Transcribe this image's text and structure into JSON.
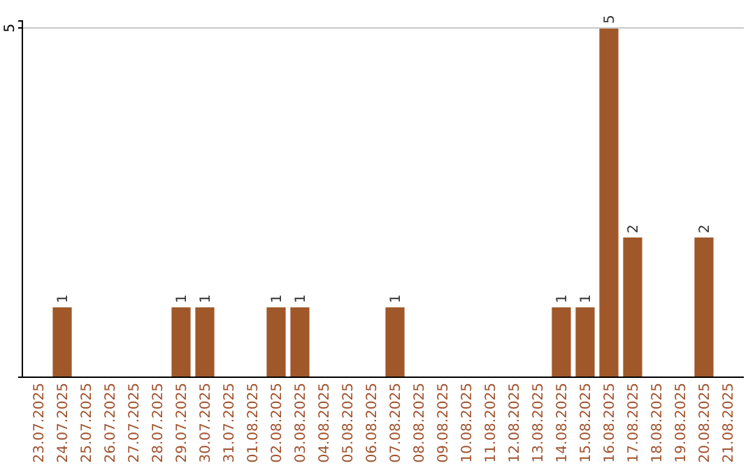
{
  "chart_data": {
    "type": "bar",
    "categories": [
      "23.07.2025",
      "24.07.2025",
      "25.07.2025",
      "26.07.2025",
      "27.07.2025",
      "28.07.2025",
      "29.07.2025",
      "30.07.2025",
      "31.07.2025",
      "01.08.2025",
      "02.08.2025",
      "03.08.2025",
      "04.08.2025",
      "05.08.2025",
      "06.08.2025",
      "07.08.2025",
      "08.08.2025",
      "09.08.2025",
      "10.08.2025",
      "11.08.2025",
      "12.08.2025",
      "13.08.2025",
      "14.08.2025",
      "15.08.2025",
      "16.08.2025",
      "17.08.2025",
      "18.08.2025",
      "19.08.2025",
      "20.08.2025",
      "21.08.2025"
    ],
    "values": [
      0,
      1,
      0,
      0,
      0,
      0,
      1,
      1,
      0,
      0,
      1,
      1,
      0,
      0,
      0,
      1,
      0,
      0,
      0,
      0,
      0,
      0,
      1,
      1,
      5,
      2,
      0,
      0,
      2,
      0
    ],
    "value_labels": [
      null,
      "1",
      null,
      null,
      null,
      null,
      "1",
      "1",
      null,
      null,
      "1",
      "1",
      null,
      null,
      null,
      "1",
      null,
      null,
      null,
      null,
      null,
      null,
      "1",
      "1",
      "5",
      "2",
      null,
      null,
      "2",
      null
    ],
    "color": "#a0582a",
    "ylim": [
      0,
      5.1
    ],
    "yticks": [
      5
    ],
    "grid": "y"
  }
}
